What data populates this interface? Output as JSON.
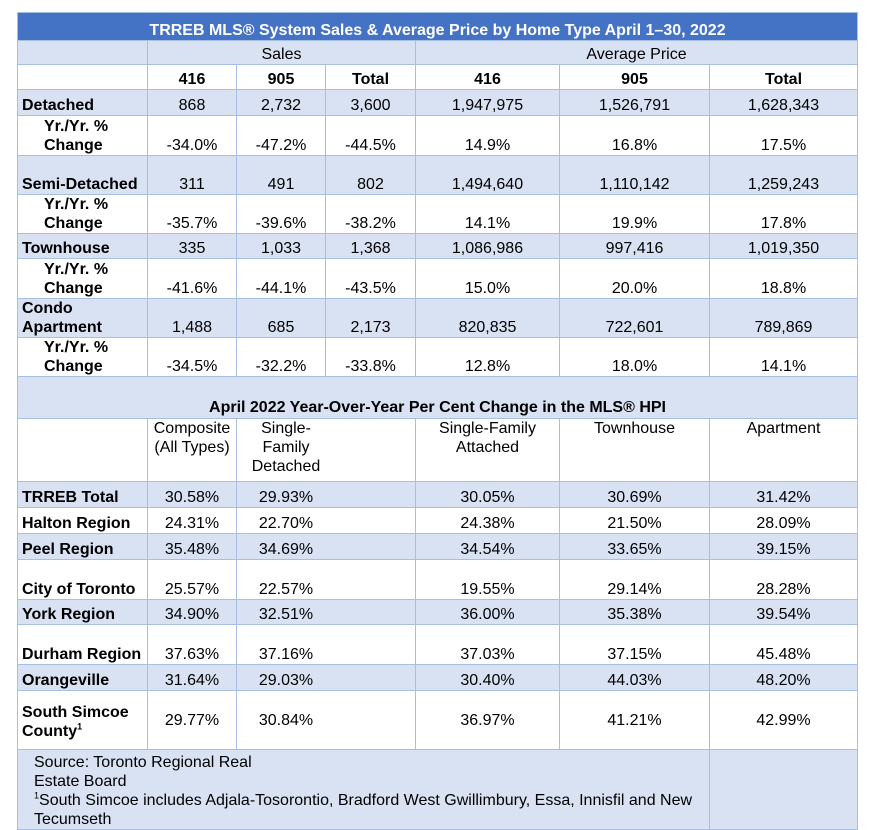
{
  "sales_table": {
    "title": "TRREB MLS® System Sales & Average Price by Home Type April 1–30, 2022",
    "group_sales": "Sales",
    "group_price": "Average Price",
    "columns": [
      "416",
      "905",
      "Total",
      "416",
      "905",
      "Total"
    ],
    "rows": [
      {
        "label": "Detached",
        "values": [
          "868",
          "2,732",
          "3,600",
          "1,947,975",
          "1,526,791",
          "1,628,343"
        ]
      },
      {
        "label": "Yr./Yr. % Change",
        "values": [
          "-34.0%",
          "-47.2%",
          "-44.5%",
          "14.9%",
          "16.8%",
          "17.5%"
        ]
      },
      {
        "label": "Semi-Detached",
        "values": [
          "311",
          "491",
          "802",
          "1,494,640",
          "1,110,142",
          "1,259,243"
        ]
      },
      {
        "label": "Yr./Yr. % Change",
        "values": [
          "-35.7%",
          "-39.6%",
          "-38.2%",
          "14.1%",
          "19.9%",
          "17.8%"
        ]
      },
      {
        "label": "Townhouse",
        "values": [
          "335",
          "1,033",
          "1,368",
          "1,086,986",
          "997,416",
          "1,019,350"
        ]
      },
      {
        "label": "Yr./Yr. % Change",
        "values": [
          "-41.6%",
          "-44.1%",
          "-43.5%",
          "15.0%",
          "20.0%",
          "18.8%"
        ]
      },
      {
        "label": "Condo Apartment",
        "values": [
          "1,488",
          "685",
          "2,173",
          "820,835",
          "722,601",
          "789,869"
        ]
      },
      {
        "label": "Yr./Yr. % Change",
        "values": [
          "-34.5%",
          "-32.2%",
          "-33.8%",
          "12.8%",
          "18.0%",
          "14.1%"
        ]
      }
    ]
  },
  "hpi_table": {
    "title": "April 2022 Year-Over-Year Per Cent Change in the MLS® HPI",
    "columns": [
      "Composite (All Types)",
      "Single-Family Detached",
      "Single-Family Attached",
      "Townhouse",
      "Apartment"
    ],
    "rows": [
      {
        "label": "TRREB Total",
        "values": [
          "30.58%",
          "29.93%",
          "30.05%",
          "30.69%",
          "31.42%"
        ]
      },
      {
        "label": "Halton Region",
        "values": [
          "24.31%",
          "22.70%",
          "24.38%",
          "21.50%",
          "28.09%"
        ]
      },
      {
        "label": "Peel Region",
        "values": [
          "35.48%",
          "34.69%",
          "34.54%",
          "33.65%",
          "39.15%"
        ]
      },
      {
        "label": "City of Toronto",
        "values": [
          "25.57%",
          "22.57%",
          "19.55%",
          "29.14%",
          "28.28%"
        ]
      },
      {
        "label": "York Region",
        "values": [
          "34.90%",
          "32.51%",
          "36.00%",
          "35.38%",
          "39.54%"
        ]
      },
      {
        "label": "Durham Region",
        "values": [
          "37.63%",
          "37.16%",
          "37.03%",
          "37.15%",
          "45.48%"
        ]
      },
      {
        "label": "Orangeville",
        "values": [
          "31.64%",
          "29.03%",
          "30.40%",
          "44.03%",
          "48.20%"
        ]
      },
      {
        "label": "South Simcoe County",
        "sup": "1",
        "values": [
          "29.77%",
          "30.84%",
          "36.97%",
          "41.21%",
          "42.99%"
        ]
      }
    ]
  },
  "footnotes": {
    "source": "Source: Toronto Regional Real Estate Board",
    "note_marker": "1",
    "note": "South Simcoe includes Adjala-Tosorontio, Bradford West Gwillimbury, Essa, Innisfil and New Tecumseth"
  }
}
